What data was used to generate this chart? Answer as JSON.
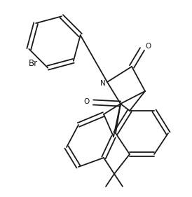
{
  "background_color": "#ffffff",
  "line_color": "#1a1a1a",
  "line_width": 1.3,
  "figsize": [
    2.74,
    2.81
  ],
  "dpi": 100,
  "Br_label": "Br",
  "N_label": "N",
  "O_label": "O",
  "font_size": 7.5
}
